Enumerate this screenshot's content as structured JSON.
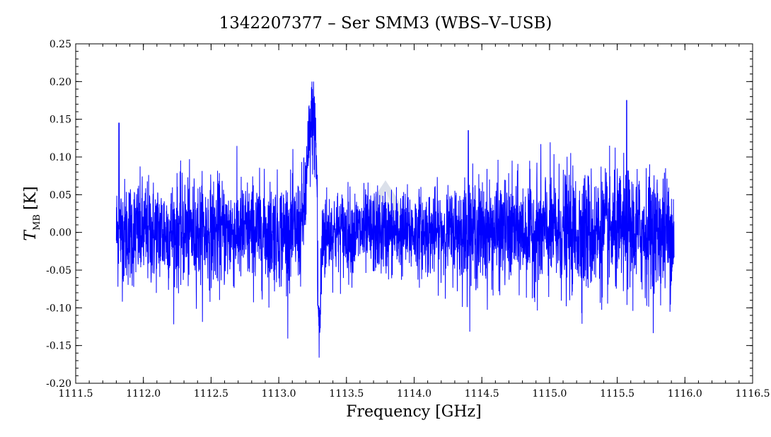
{
  "chart_data": {
    "type": "line",
    "title": "1342207377 – Ser SMM3 (WBS–V–USB)",
    "xlabel": "Frequency [GHz]",
    "ylabel_main": "T",
    "ylabel_sub": "MB",
    "ylabel_unit": "[K]",
    "xlim": [
      1111.5,
      1116.5
    ],
    "ylim": [
      -0.2,
      0.25
    ],
    "xticks": [
      "1111.5",
      "1112.0",
      "1112.5",
      "1113.0",
      "1113.5",
      "1114.0",
      "1114.5",
      "1115.0",
      "1115.5",
      "1116.0",
      "1116.5"
    ],
    "yticks": [
      "-0.20",
      "-0.15",
      "-0.10",
      "-0.05",
      "0.00",
      "0.05",
      "0.10",
      "0.15",
      "0.20",
      "0.25"
    ],
    "grid": false,
    "series": [
      {
        "color": "#0000ff",
        "x_range": [
          1111.8,
          1115.92
        ],
        "features": [
          {
            "x": 1113.25,
            "y": 0.2,
            "kind": "emission-peak"
          },
          {
            "x": 1113.3,
            "y": -0.185,
            "kind": "absorption-dip"
          },
          {
            "x": 1115.57,
            "y": 0.175,
            "kind": "spike"
          },
          {
            "x": 1111.82,
            "y": 0.145,
            "kind": "spike"
          },
          {
            "x": 1114.4,
            "y": 0.135,
            "kind": "spike"
          }
        ],
        "noise_rms": 0.035
      }
    ]
  },
  "watermark": {
    "icon": "hifi-watermark-icon"
  }
}
